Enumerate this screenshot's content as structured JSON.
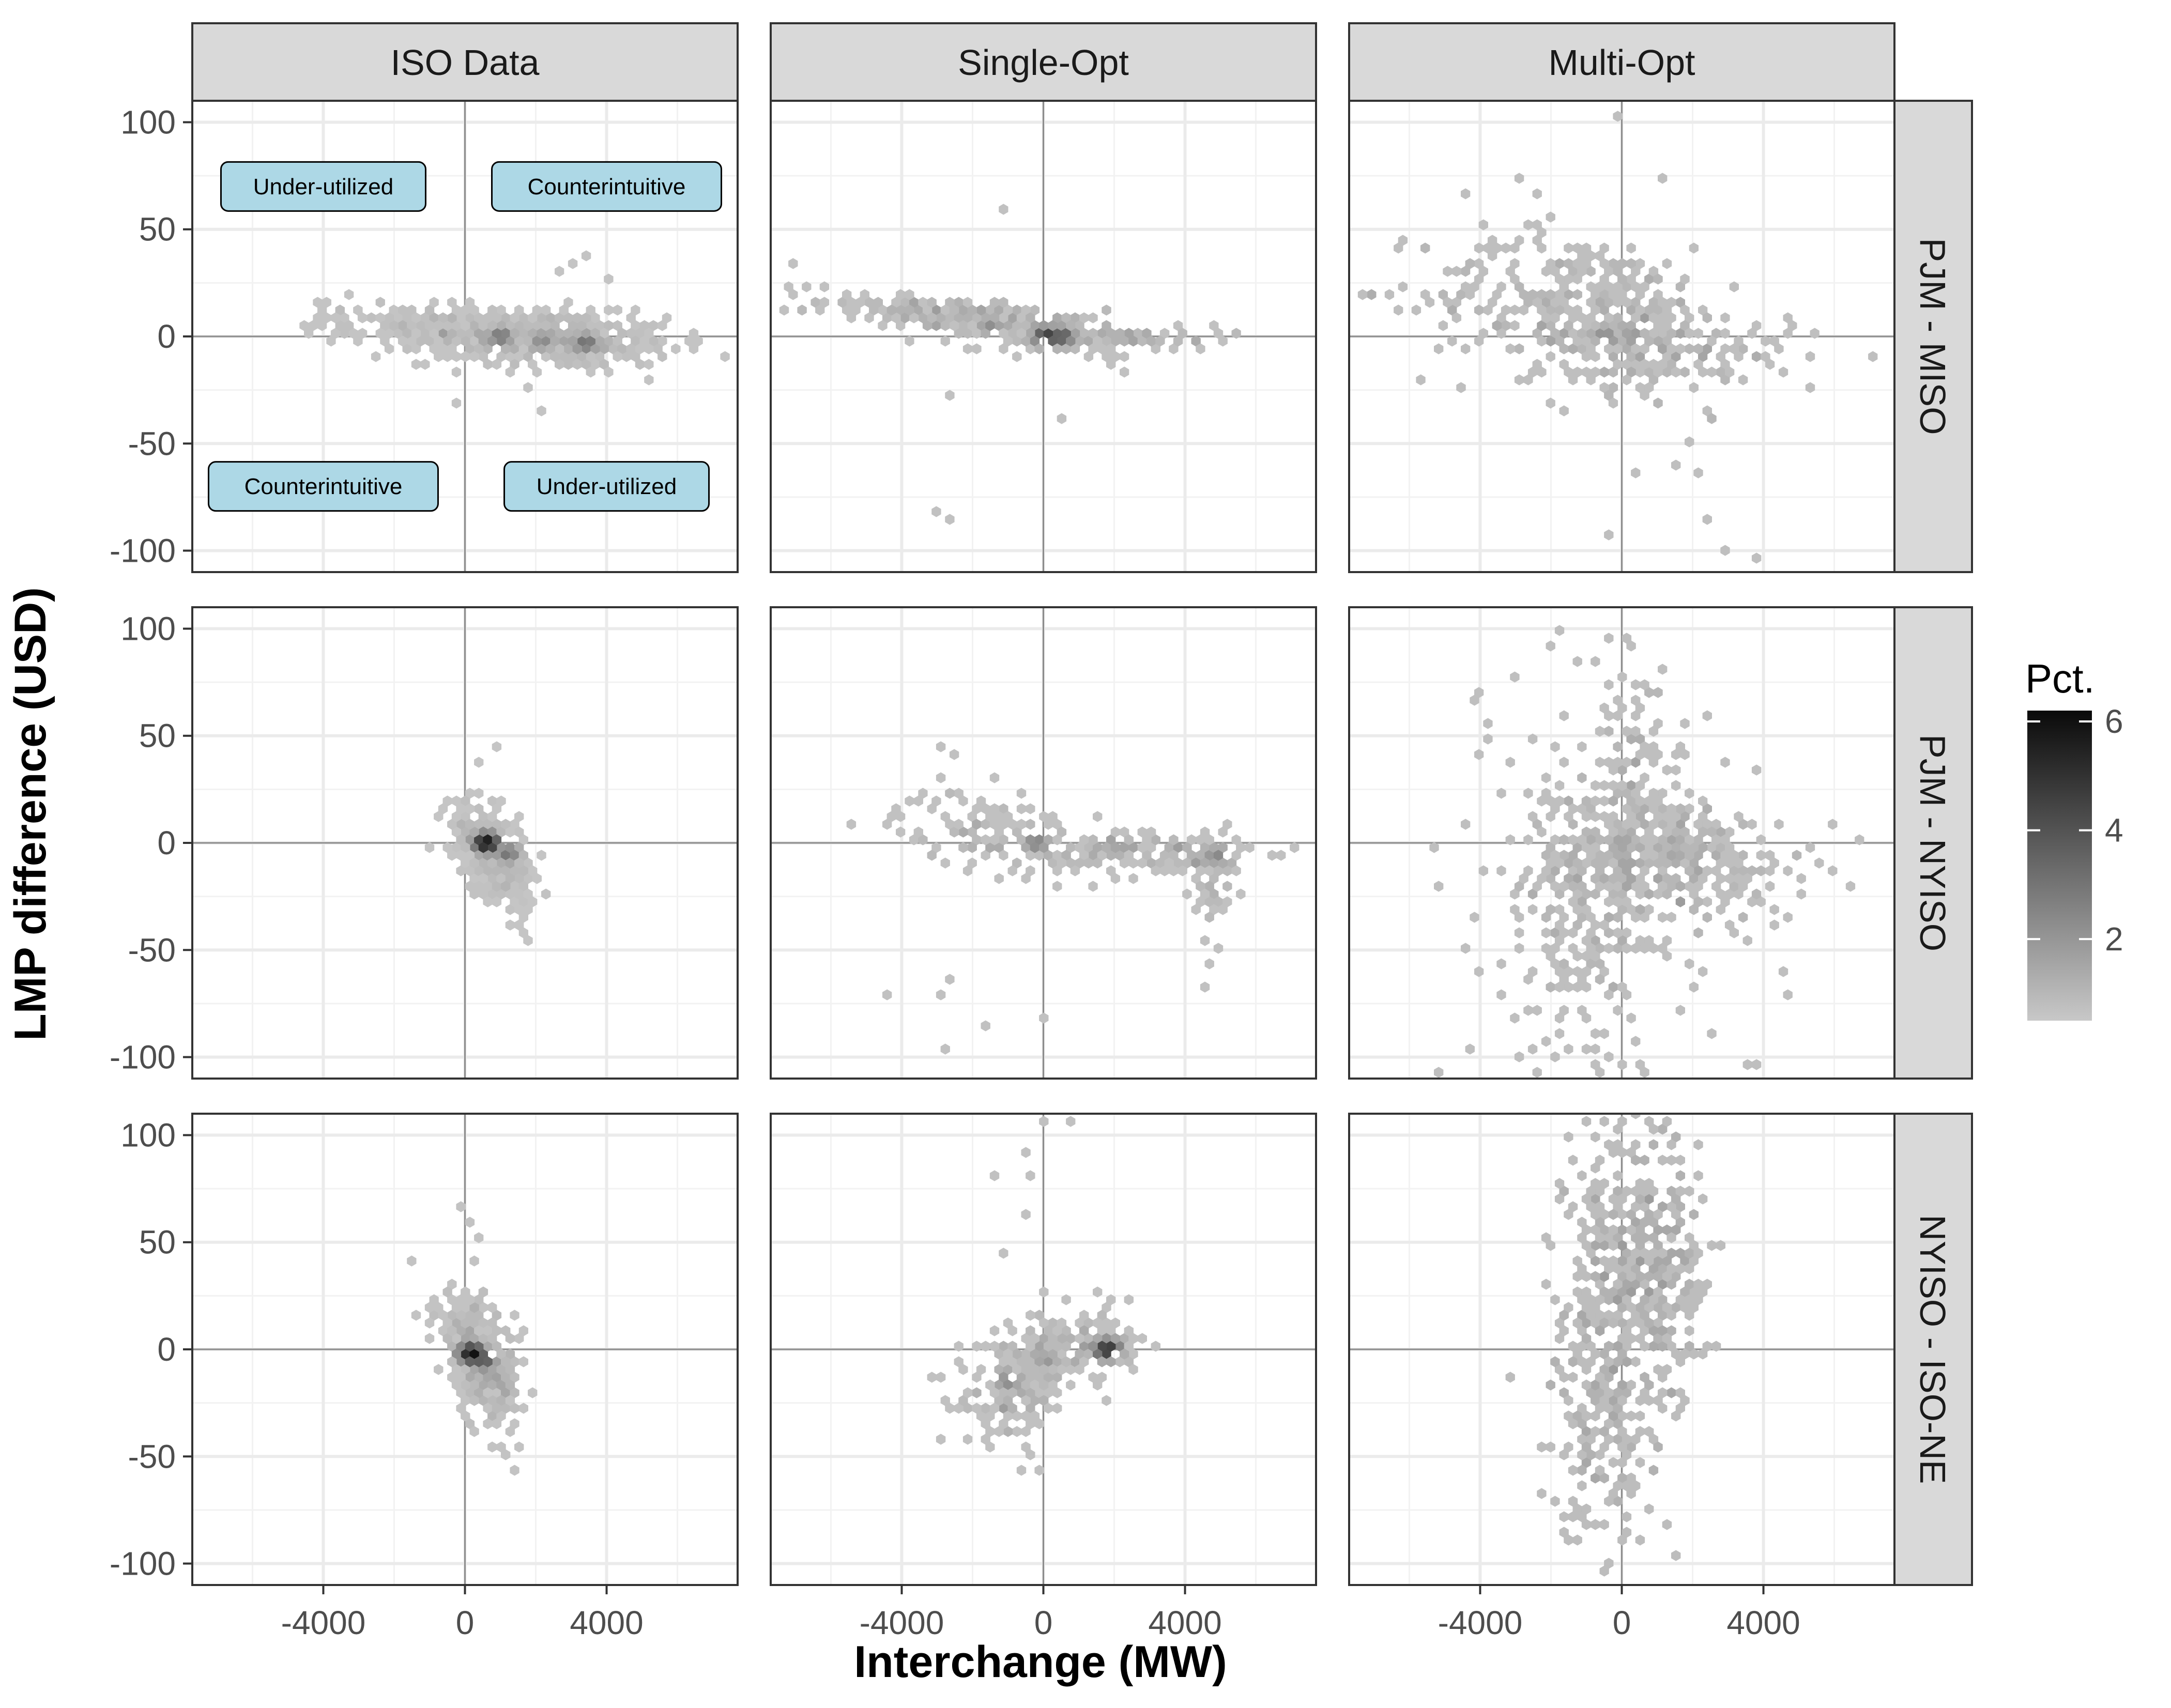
{
  "chart_data": {
    "type": "heatmap",
    "subtype": "hexbin facet grid",
    "xlabel": "Interchange (MW)",
    "ylabel": "LMP difference (USD)",
    "columns": [
      "ISO Data",
      "Single-Opt",
      "Multi-Opt"
    ],
    "rows": [
      "PJM - MISO",
      "PJM - NYISO",
      "NYISO - ISO-NE"
    ],
    "xlim": [
      -7700,
      7700
    ],
    "ylim": [
      -110,
      110
    ],
    "x_ticks": [
      -4000,
      0,
      4000
    ],
    "x_tick_labels": [
      "-4000",
      "0",
      "4000"
    ],
    "y_ticks": [
      -100,
      -50,
      0,
      50,
      100
    ],
    "y_tick_labels": [
      "-100",
      "-50",
      "0",
      "50",
      "100"
    ],
    "grid": true,
    "reference_lines": {
      "x": 0,
      "y": 0
    },
    "legend": {
      "title": "Pct.",
      "position": "right",
      "min": 0.5,
      "max": 6.2,
      "ticks": [
        2,
        4,
        6
      ],
      "tick_labels": [
        "2",
        "4",
        "6"
      ],
      "color_low": "#c8c8c8",
      "color_high": "#0a0a0a"
    },
    "annotations": [
      {
        "panel": [
          0,
          0
        ],
        "text": "Under-utilized",
        "x": -4000,
        "y": 70
      },
      {
        "panel": [
          0,
          0
        ],
        "text": "Counterintuitive",
        "x": 4000,
        "y": 70
      },
      {
        "panel": [
          0,
          0
        ],
        "text": "Counterintuitive",
        "x": -4000,
        "y": -70
      },
      {
        "panel": [
          0,
          0
        ],
        "text": "Under-utilized",
        "x": 4000,
        "y": -70
      }
    ],
    "annotation_fill": "#add8e6",
    "panels": [
      {
        "row": 0,
        "col": 0,
        "clusters": [
          {
            "cx": 2500,
            "cy": -2,
            "sx": 1700,
            "sy": 7,
            "n": 360,
            "r": -0.15
          },
          {
            "cx": 300,
            "cy": 2,
            "sx": 1800,
            "sy": 6,
            "n": 150,
            "r": -0.1
          },
          {
            "cx": -1800,
            "cy": 7,
            "sx": 1300,
            "sy": 4,
            "n": 60,
            "r": -0.2
          }
        ],
        "peaks": [
          {
            "x": 1000,
            "y": 0,
            "v": 3.0
          },
          {
            "x": 3400,
            "y": -3,
            "v": 3.2
          },
          {
            "x": 2200,
            "y": -2,
            "v": 2.4
          }
        ],
        "points": [
          [
            -4000,
            11
          ],
          [
            -3200,
            18
          ],
          [
            -2500,
            15
          ],
          [
            3500,
            37
          ],
          [
            3000,
            33
          ],
          [
            2200,
            -33
          ],
          [
            1800,
            -25
          ],
          [
            5200,
            -20
          ],
          [
            6500,
            -2
          ],
          [
            -3500,
            14
          ],
          [
            4000,
            25
          ],
          [
            2600,
            30
          ]
        ]
      },
      {
        "row": 0,
        "col": 1,
        "clusters": [
          {
            "cx": -2800,
            "cy": 10,
            "sx": 1800,
            "sy": 5,
            "n": 170,
            "r": -0.6
          },
          {
            "cx": 400,
            "cy": 2,
            "sx": 1500,
            "sy": 6,
            "n": 120,
            "r": -0.4
          },
          {
            "cx": 2800,
            "cy": 0,
            "sx": 1200,
            "sy": 2,
            "n": 40,
            "r": 0
          }
        ],
        "peaks": [
          {
            "x": 100,
            "y": 0,
            "v": 4.8
          },
          {
            "x": 500,
            "y": 0,
            "v": 4.0
          },
          {
            "x": -1500,
            "y": 5,
            "v": 2.2
          }
        ],
        "points": [
          [
            -7000,
            35
          ],
          [
            -6800,
            12
          ],
          [
            -1200,
            58
          ],
          [
            -3000,
            -80
          ],
          [
            -2600,
            -85
          ],
          [
            600,
            -40
          ],
          [
            2200,
            -18
          ],
          [
            -2600,
            -28
          ],
          [
            4200,
            -2
          ],
          [
            5000,
            -2
          ],
          [
            -5500,
            18
          ],
          [
            1800,
            -10
          ]
        ]
      },
      {
        "row": 0,
        "col": 2,
        "clusters": [
          {
            "cx": -1200,
            "cy": 14,
            "sx": 2200,
            "sy": 17,
            "n": 300,
            "r": -0.2
          },
          {
            "cx": 1200,
            "cy": -5,
            "sx": 1800,
            "sy": 12,
            "n": 160,
            "r": -0.2
          }
        ],
        "peaks": [
          {
            "x": -500,
            "y": 1,
            "v": 2.2
          },
          {
            "x": 300,
            "y": 0,
            "v": 2.0
          }
        ],
        "points": [
          [
            -7000,
            18
          ],
          [
            -4500,
            65
          ],
          [
            -3000,
            73
          ],
          [
            -2500,
            65
          ],
          [
            -5500,
            40
          ],
          [
            0,
            102
          ],
          [
            1200,
            75
          ],
          [
            2100,
            -65
          ],
          [
            2300,
            -85
          ],
          [
            2800,
            -100
          ],
          [
            -400,
            -93
          ],
          [
            300,
            -65
          ],
          [
            3700,
            -102
          ],
          [
            5500,
            0
          ],
          [
            -1600,
            -33
          ],
          [
            1900,
            -50
          ],
          [
            1500,
            -60
          ],
          [
            2600,
            -40
          ],
          [
            4500,
            -15
          ],
          [
            -4200,
            35
          ],
          [
            -2000,
            55
          ]
        ]
      },
      {
        "row": 1,
        "col": 0,
        "clusters": [
          {
            "cx": 700,
            "cy": -3,
            "sx": 550,
            "sy": 12,
            "n": 260,
            "r": -0.55
          },
          {
            "cx": 900,
            "cy": -12,
            "sx": 500,
            "sy": 10,
            "n": 80,
            "r": -0.4
          }
        ],
        "peaks": [
          {
            "x": 600,
            "y": 0,
            "v": 6.0
          },
          {
            "x": 1200,
            "y": -5,
            "v": 3.0
          }
        ],
        "points": [
          [
            800,
            46
          ],
          [
            1700,
            -43
          ],
          [
            1500,
            -37
          ],
          [
            -500,
            -2
          ],
          [
            2200,
            -4
          ],
          [
            400,
            38
          ],
          [
            1900,
            -25
          ],
          [
            200,
            -25
          ]
        ]
      },
      {
        "row": 1,
        "col": 1,
        "clusters": [
          {
            "cx": -1500,
            "cy": 5,
            "sx": 1300,
            "sy": 9,
            "n": 120,
            "r": -0.2
          },
          {
            "cx": 3000,
            "cy": -5,
            "sx": 1400,
            "sy": 6,
            "n": 140,
            "r": -0.2
          },
          {
            "cx": 4800,
            "cy": -15,
            "sx": 300,
            "sy": 12,
            "n": 50,
            "r": 0
          }
        ],
        "peaks": [
          {
            "x": -200,
            "y": 0,
            "v": 2.6
          },
          {
            "x": 4900,
            "y": -6,
            "v": 2.4
          },
          {
            "x": 2000,
            "y": 0,
            "v": 1.8
          }
        ],
        "points": [
          [
            -4300,
            -70
          ],
          [
            -2600,
            -65
          ],
          [
            -3000,
            -70
          ],
          [
            -2700,
            -96
          ],
          [
            -1700,
            -85
          ],
          [
            -100,
            -83
          ],
          [
            -2800,
            46
          ],
          [
            4600,
            -68
          ],
          [
            4700,
            -55
          ],
          [
            5000,
            -30
          ],
          [
            -2400,
            40
          ],
          [
            -3500,
            20
          ]
        ]
      },
      {
        "row": 1,
        "col": 2,
        "clusters": [
          {
            "cx": 1200,
            "cy": -8,
            "sx": 2000,
            "sy": 15,
            "n": 320,
            "r": 0
          },
          {
            "cx": -900,
            "cy": -30,
            "sx": 1400,
            "sy": 45,
            "n": 260,
            "r": 0
          },
          {
            "cx": 400,
            "cy": 20,
            "sx": 1100,
            "sy": 35,
            "n": 120,
            "r": 0
          }
        ],
        "peaks": [
          {
            "x": 0,
            "y": 0,
            "v": 1.8
          },
          {
            "x": 1500,
            "y": -5,
            "v": 1.6
          }
        ],
        "points": [
          [
            -4200,
            65
          ],
          [
            -4000,
            72
          ],
          [
            -3800,
            55
          ],
          [
            -2000,
            92
          ],
          [
            -1300,
            85
          ],
          [
            -300,
            110
          ],
          [
            -600,
            -108
          ],
          [
            3800,
            -103
          ],
          [
            3500,
            -102
          ],
          [
            -4300,
            -95
          ],
          [
            -3400,
            -55
          ],
          [
            4300,
            -30
          ],
          [
            5000,
            -5
          ],
          [
            4600,
            -60
          ],
          [
            4800,
            -70
          ],
          [
            -3000,
            -80
          ],
          [
            -4400,
            8
          ],
          [
            -1800,
            100
          ]
        ]
      },
      {
        "row": 2,
        "col": 0,
        "clusters": [
          {
            "cx": 400,
            "cy": -3,
            "sx": 600,
            "sy": 14,
            "n": 260,
            "r": -0.55
          },
          {
            "cx": 700,
            "cy": -15,
            "sx": 450,
            "sy": 12,
            "n": 80,
            "r": -0.3
          }
        ],
        "peaks": [
          {
            "x": 200,
            "y": -2,
            "v": 6.1
          },
          {
            "x": 500,
            "y": -5,
            "v": 4.0
          }
        ],
        "points": [
          [
            -100,
            66
          ],
          [
            100,
            58
          ],
          [
            400,
            52
          ],
          [
            -1400,
            17
          ],
          [
            1500,
            -45
          ],
          [
            1200,
            -50
          ],
          [
            -1000,
            20
          ],
          [
            300,
            40
          ]
        ]
      },
      {
        "row": 2,
        "col": 1,
        "clusters": [
          {
            "cx": -800,
            "cy": -18,
            "sx": 800,
            "sy": 12,
            "n": 160,
            "r": 0.3
          },
          {
            "cx": 800,
            "cy": 3,
            "sx": 900,
            "sy": 8,
            "n": 120,
            "r": 0.2
          },
          {
            "cx": 1800,
            "cy": 0,
            "sx": 300,
            "sy": 4,
            "n": 30,
            "r": 0
          }
        ],
        "peaks": [
          {
            "x": 1800,
            "y": 0,
            "v": 5.2
          },
          {
            "x": -1000,
            "y": -15,
            "v": 2.4
          },
          {
            "x": 100,
            "y": -5,
            "v": 2.0
          }
        ],
        "points": [
          [
            0,
            108
          ],
          [
            700,
            108
          ],
          [
            -1300,
            80
          ],
          [
            -500,
            92
          ],
          [
            -600,
            62
          ],
          [
            -1200,
            44
          ],
          [
            -400,
            82
          ],
          [
            -100,
            -56
          ],
          [
            -300,
            -48
          ],
          [
            2300,
            22
          ],
          [
            1600,
            25
          ]
        ]
      },
      {
        "row": 2,
        "col": 2,
        "clusters": [
          {
            "cx": 200,
            "cy": 40,
            "sx": 900,
            "sy": 35,
            "n": 300,
            "r": 0
          },
          {
            "cx": -500,
            "cy": -30,
            "sx": 700,
            "sy": 30,
            "n": 180,
            "r": 0
          },
          {
            "cx": 1300,
            "cy": 35,
            "sx": 500,
            "sy": 25,
            "n": 100,
            "r": 0
          }
        ],
        "peaks": [
          {
            "x": -300,
            "y": 8,
            "v": 1.8
          },
          {
            "x": 1000,
            "y": 2,
            "v": 1.5
          }
        ],
        "points": [
          [
            -400,
            105
          ],
          [
            800,
            108
          ],
          [
            1100,
            102
          ],
          [
            -500,
            -103
          ],
          [
            -1000,
            -75
          ],
          [
            1300,
            -82
          ],
          [
            1500,
            -97
          ],
          [
            2100,
            45
          ],
          [
            -1900,
            -70
          ],
          [
            1800,
            -25
          ],
          [
            500,
            -90
          ],
          [
            -1500,
            -45
          ]
        ]
      }
    ]
  }
}
